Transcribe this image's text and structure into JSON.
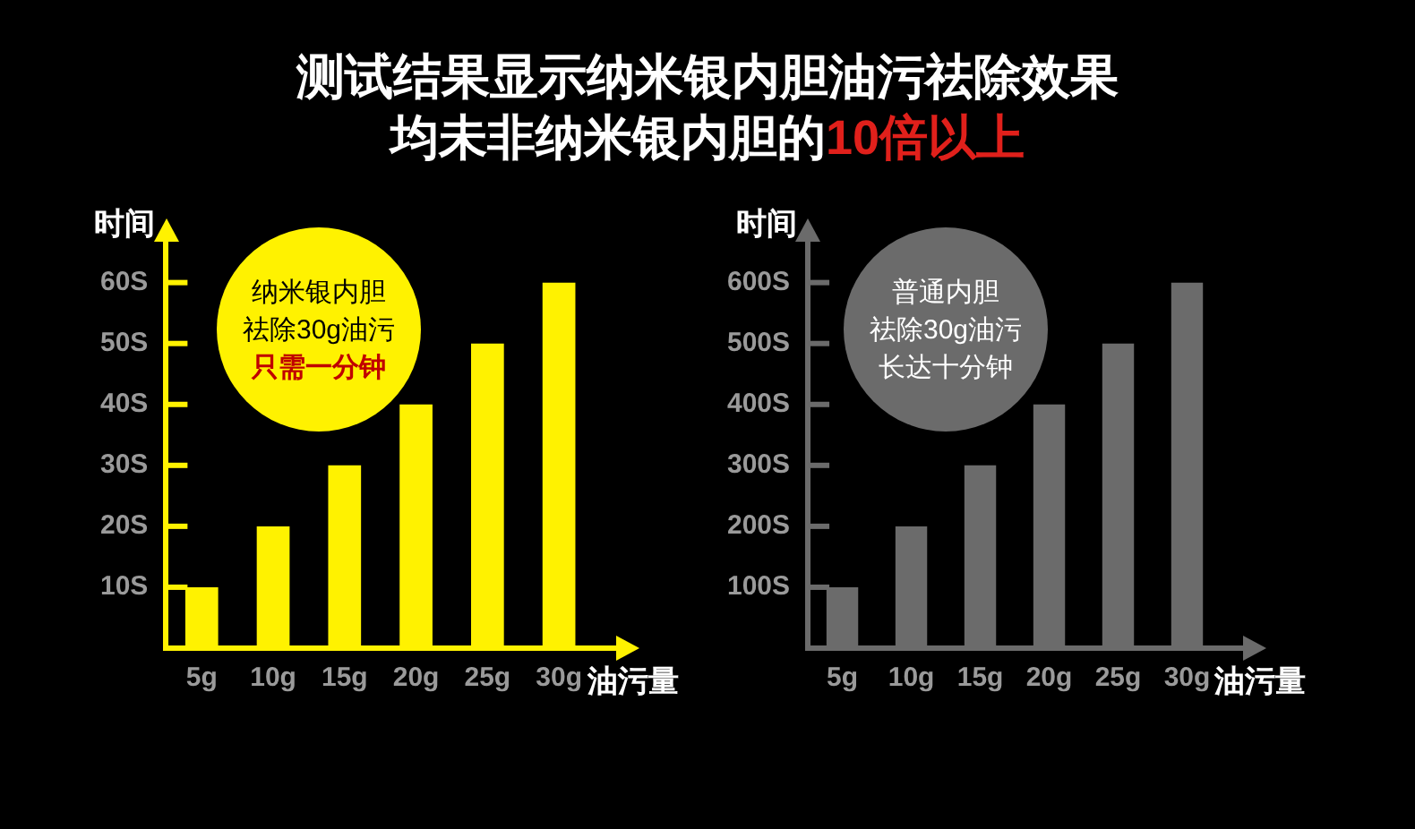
{
  "chart_data": [
    {
      "type": "bar",
      "title": "测试结果显示纳米银内胆油污祛除效果",
      "subtitle": "均未非纳米银内胆的10倍以上",
      "xlabel": "油污量",
      "ylabel": "时间",
      "categories": [
        "5g",
        "10g",
        "15g",
        "20g",
        "25g",
        "30g"
      ],
      "series": [
        {
          "color": "#fff200",
          "values": [
            10,
            20,
            30,
            40,
            50,
            60
          ]
        }
      ],
      "ylim": [
        0,
        67
      ],
      "yticks": [
        {
          "value": 10,
          "label": "10S"
        },
        {
          "value": 20,
          "label": "20S"
        },
        {
          "value": 30,
          "label": "30S"
        },
        {
          "value": 40,
          "label": "40S"
        },
        {
          "value": 50,
          "label": "50S"
        },
        {
          "value": 60,
          "label": "60S"
        }
      ],
      "annotations": [
        "纳米银内胆",
        "祛除30g油污",
        "只需一分钟"
      ],
      "grid": false,
      "legend": false
    },
    {
      "type": "bar",
      "xlabel": "油污量",
      "ylabel": "时间",
      "categories": [
        "5g",
        "10g",
        "15g",
        "20g",
        "25g",
        "30g"
      ],
      "series": [
        {
          "color": "#6b6b6b",
          "values": [
            100,
            200,
            300,
            400,
            500,
            600
          ]
        }
      ],
      "ylim": [
        0,
        670
      ],
      "yticks": [
        {
          "value": 100,
          "label": "100S"
        },
        {
          "value": 200,
          "label": "200S"
        },
        {
          "value": 300,
          "label": "300S"
        },
        {
          "value": 400,
          "label": "400S"
        },
        {
          "value": 500,
          "label": "500S"
        },
        {
          "value": 600,
          "label": "600S"
        }
      ],
      "annotations": [
        "普通内胆",
        "祛除30g油污",
        "长达十分钟"
      ],
      "grid": false,
      "legend": false
    }
  ]
}
